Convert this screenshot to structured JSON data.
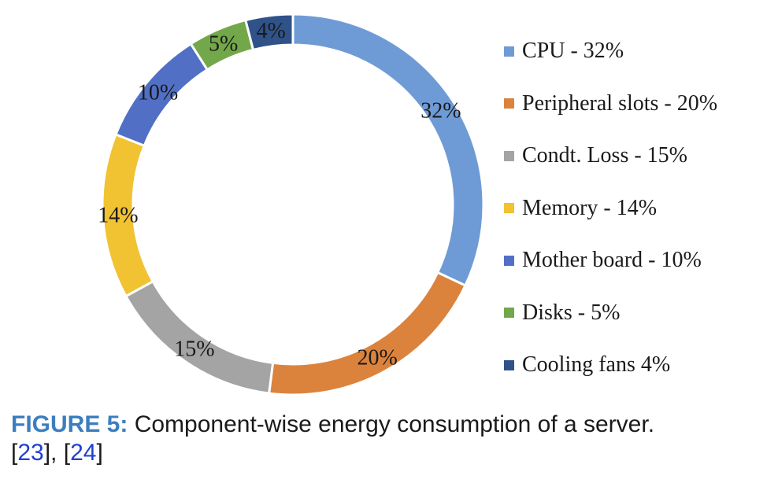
{
  "chart_data": {
    "type": "pie",
    "donut": true,
    "title": "",
    "slices": [
      {
        "label": "CPU - 32%",
        "value": 32,
        "data_label": "32%",
        "color": "#6e9bd5"
      },
      {
        "label": "Peripheral slots - 20%",
        "value": 20,
        "data_label": "20%",
        "color": "#db833d"
      },
      {
        "label": "Condt. Loss - 15%",
        "value": 15,
        "data_label": "15%",
        "color": "#a4a4a4"
      },
      {
        "label": "Memory - 14%",
        "value": 14,
        "data_label": "14%",
        "color": "#f1c232"
      },
      {
        "label": "Mother board - 10%",
        "value": 10,
        "data_label": "10%",
        "color": "#5170c5"
      },
      {
        "label": "Disks - 5%",
        "value": 5,
        "data_label": "5%",
        "color": "#73a84a"
      },
      {
        "label": "Cooling fans 4%",
        "value": 4,
        "data_label": "4%",
        "color": "#2f5288"
      }
    ],
    "legend_position": "right"
  },
  "caption": {
    "label": "FIGURE 5:",
    "text": " Component-wise energy consumption of a server.",
    "ref1": "23",
    "ref2": "24"
  }
}
